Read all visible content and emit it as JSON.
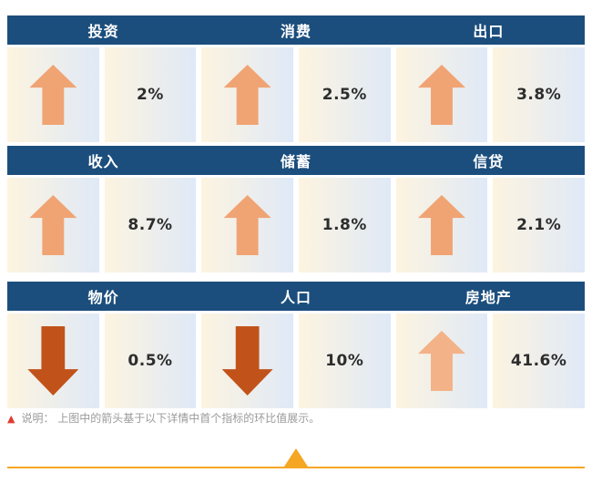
{
  "colors": {
    "header_bg": "#1c4e7d",
    "header_text": "#ffffff",
    "cell_left": "#fdf4e0",
    "cell_right": "#dfe9f7",
    "up": "#f0a474",
    "up_light": "#f3b287",
    "down": "#c1531a",
    "value_color": "#2d2d2d",
    "note_color": "#9a9a9a",
    "note_marker_color": "#e03a2f",
    "accent": "#f5a623"
  },
  "rows": [
    {
      "groups": [
        {
          "label": "投资",
          "direction": "up",
          "value": "2%"
        },
        {
          "label": "消费",
          "direction": "up",
          "value": "2.5%"
        },
        {
          "label": "出口",
          "direction": "up",
          "value": "3.8%"
        }
      ]
    },
    {
      "groups": [
        {
          "label": "收入",
          "direction": "up",
          "value": "8.7%"
        },
        {
          "label": "储蓄",
          "direction": "up",
          "value": "1.8%"
        },
        {
          "label": "信贷",
          "direction": "up",
          "value": "2.1%"
        }
      ]
    },
    {
      "groups": [
        {
          "label": "物价",
          "direction": "down",
          "value": "0.5%"
        },
        {
          "label": "人口",
          "direction": "down",
          "value": "10%"
        },
        {
          "label": "房地产",
          "direction": "up",
          "value": "41.6%"
        }
      ]
    }
  ],
  "note": {
    "marker": "▲",
    "text": "说明： 上图中的箭头基于以下详情中首个指标的环比值展示。"
  },
  "chart_data": {
    "type": "table",
    "categories": [
      "投资",
      "消费",
      "出口",
      "收入",
      "储蓄",
      "信贷",
      "物价",
      "人口",
      "房地产"
    ],
    "values": [
      2,
      2.5,
      3.8,
      8.7,
      1.8,
      2.1,
      -0.5,
      -10,
      41.6
    ],
    "directions": [
      "up",
      "up",
      "up",
      "up",
      "up",
      "up",
      "down",
      "down",
      "up"
    ],
    "unit": "%",
    "title": "",
    "note": "说明： 上图中的箭头基于以下详情中首个指标的环比值展示。"
  }
}
